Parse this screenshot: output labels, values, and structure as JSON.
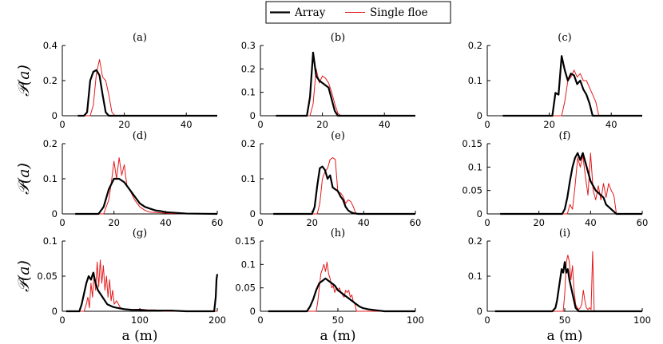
{
  "chart_data": {
    "type": "line",
    "legend": {
      "placement": "top-center",
      "entries": [
        {
          "name": "Array",
          "color": "#000000"
        },
        {
          "name": "Single floe",
          "color": "#e41a1c"
        }
      ]
    },
    "ylabel": "𝒫(a)",
    "xlabel": "a (m)",
    "panels": [
      {
        "title": "(a)",
        "xlim": [
          0,
          50
        ],
        "ylim": [
          0,
          0.4
        ],
        "xticks": [
          "0",
          "20",
          "40"
        ],
        "yticks": [
          "0",
          "0.2",
          "0.4"
        ],
        "series": [
          {
            "name": "Array",
            "x": [
              5,
              7,
              8,
              9,
              10,
              11,
              12,
              13,
              14,
              15,
              16,
              50
            ],
            "y": [
              0,
              0,
              0.02,
              0.2,
              0.25,
              0.26,
              0.23,
              0.12,
              0.02,
              0,
              0,
              0
            ]
          },
          {
            "name": "Single floe",
            "x": [
              5,
              9,
              10,
              11,
              12,
              13,
              14,
              15,
              16,
              17,
              50
            ],
            "y": [
              0,
              0,
              0.06,
              0.24,
              0.32,
              0.22,
              0.2,
              0.12,
              0.02,
              0,
              0
            ]
          }
        ]
      },
      {
        "title": "(b)",
        "xlim": [
          0,
          50
        ],
        "ylim": [
          0,
          0.3
        ],
        "xticks": [
          "0",
          "20",
          "40"
        ],
        "yticks": [
          "0",
          "0.1",
          "0.2",
          "0.3"
        ],
        "series": [
          {
            "name": "Array",
            "x": [
              5,
              15,
              16,
              17,
              18,
              19,
              20,
              21,
              22,
              23,
              24,
              25,
              50
            ],
            "y": [
              0,
              0,
              0.08,
              0.27,
              0.17,
              0.15,
              0.14,
              0.13,
              0.12,
              0.07,
              0.02,
              0,
              0
            ]
          },
          {
            "name": "Single floe",
            "x": [
              5,
              16,
              17,
              18,
              19,
              20,
              21,
              22,
              23,
              24,
              25,
              26,
              50
            ],
            "y": [
              0,
              0,
              0.05,
              0.2,
              0.14,
              0.17,
              0.16,
              0.14,
              0.1,
              0.05,
              0.01,
              0,
              0
            ]
          }
        ]
      },
      {
        "title": "(c)",
        "xlim": [
          0,
          50
        ],
        "ylim": [
          0,
          0.2
        ],
        "xticks": [
          "0",
          "20",
          "40"
        ],
        "yticks": [
          "0",
          "0.1",
          "0.2"
        ],
        "series": [
          {
            "name": "Array",
            "x": [
              5,
              21,
              22,
              23,
              24,
              25,
              26,
              27,
              28,
              29,
              30,
              31,
              32,
              33,
              34,
              50
            ],
            "y": [
              0,
              0,
              0.065,
              0.06,
              0.17,
              0.13,
              0.1,
              0.12,
              0.115,
              0.09,
              0.1,
              0.075,
              0.06,
              0.035,
              0,
              0
            ]
          },
          {
            "name": "Single floe",
            "x": [
              5,
              24,
              25,
              26,
              27,
              28,
              29,
              30,
              31,
              32,
              33,
              34,
              35,
              36,
              50
            ],
            "y": [
              0,
              0,
              0.04,
              0.1,
              0.11,
              0.13,
              0.11,
              0.12,
              0.1,
              0.1,
              0.08,
              0.06,
              0.04,
              0,
              0
            ]
          }
        ]
      },
      {
        "title": "(d)",
        "xlim": [
          0,
          60
        ],
        "ylim": [
          0,
          0.2
        ],
        "xticks": [
          "0",
          "20",
          "40",
          "60"
        ],
        "yticks": [
          "0",
          "0.1",
          "0.2"
        ],
        "series": [
          {
            "name": "Array",
            "x": [
              5,
              14,
              16,
              18,
              20,
              22,
              24,
              26,
              28,
              30,
              32,
              34,
              36,
              38,
              40,
              44,
              48,
              60
            ],
            "y": [
              0,
              0,
              0.02,
              0.07,
              0.1,
              0.1,
              0.09,
              0.07,
              0.05,
              0.03,
              0.02,
              0.015,
              0.01,
              0.008,
              0.005,
              0.003,
              0.001,
              0
            ]
          },
          {
            "name": "Single floe",
            "x": [
              5,
              16,
              18,
              19,
              20,
              21,
              22,
              23,
              24,
              25,
              26,
              28,
              30,
              32,
              34,
              38,
              42,
              60
            ],
            "y": [
              0,
              0,
              0.04,
              0.09,
              0.15,
              0.1,
              0.16,
              0.11,
              0.14,
              0.08,
              0.07,
              0.04,
              0.02,
              0.01,
              0.005,
              0.003,
              0.001,
              0
            ]
          }
        ]
      },
      {
        "title": "(e)",
        "xlim": [
          0,
          60
        ],
        "ylim": [
          0,
          0.2
        ],
        "xticks": [
          "0",
          "20",
          "40",
          "60"
        ],
        "yticks": [
          "0",
          "0.1",
          "0.2"
        ],
        "series": [
          {
            "name": "Array",
            "x": [
              5,
              20,
              21,
              22,
              23,
              24,
              25,
              26,
              27,
              28,
              29,
              30,
              31,
              32,
              33,
              34,
              35,
              36,
              38,
              40,
              60
            ],
            "y": [
              0,
              0,
              0.02,
              0.08,
              0.13,
              0.135,
              0.125,
              0.1,
              0.11,
              0.075,
              0.07,
              0.065,
              0.05,
              0.04,
              0.02,
              0.01,
              0.005,
              0.002,
              0,
              0,
              0
            ]
          },
          {
            "name": "Single floe",
            "x": [
              5,
              22,
              23,
              24,
              25,
              26,
              27,
              28,
              29,
              30,
              31,
              32,
              33,
              34,
              35,
              36,
              37,
              60
            ],
            "y": [
              0,
              0,
              0.03,
              0.1,
              0.12,
              0.13,
              0.155,
              0.16,
              0.155,
              0.06,
              0.06,
              0.05,
              0.03,
              0.04,
              0.035,
              0.02,
              0,
              0
            ]
          }
        ]
      },
      {
        "title": "(f)",
        "xlim": [
          0,
          60
        ],
        "ylim": [
          0,
          0.15
        ],
        "xticks": [
          "0",
          "20",
          "40",
          "60"
        ],
        "yticks": [
          "0",
          "0.05",
          "0.1",
          "0.15"
        ],
        "series": [
          {
            "name": "Array",
            "x": [
              5,
              29,
              30,
              31,
              32,
              33,
              34,
              35,
              36,
              37,
              38,
              39,
              40,
              41,
              42,
              43,
              44,
              45,
              46,
              47,
              48,
              49,
              50,
              60
            ],
            "y": [
              0,
              0,
              0.01,
              0.035,
              0.07,
              0.1,
              0.12,
              0.13,
              0.115,
              0.13,
              0.11,
              0.09,
              0.07,
              0.06,
              0.05,
              0.045,
              0.04,
              0.035,
              0.02,
              0.015,
              0.01,
              0.005,
              0,
              0
            ]
          },
          {
            "name": "Single floe",
            "x": [
              5,
              31,
              32,
              33,
              34,
              35,
              36,
              37,
              38,
              39,
              40,
              41,
              42,
              43,
              44,
              45,
              46,
              47,
              48,
              49,
              50,
              60
            ],
            "y": [
              0,
              0,
              0.02,
              0.01,
              0.06,
              0.12,
              0.1,
              0.125,
              0.08,
              0.04,
              0.13,
              0.05,
              0.03,
              0.06,
              0.03,
              0.065,
              0.035,
              0.065,
              0.05,
              0.04,
              0,
              0
            ]
          }
        ]
      },
      {
        "title": "(g)",
        "xlim": [
          0,
          200
        ],
        "ylim": [
          0,
          0.1
        ],
        "xticks": [
          "0",
          "100",
          "200"
        ],
        "yticks": [
          "0",
          "0.05",
          "0.1"
        ],
        "series": [
          {
            "name": "Array",
            "x": [
              5,
              22,
              25,
              28,
              31,
              34,
              37,
              40,
              43,
              46,
              49,
              52,
              55,
              58,
              62,
              66,
              70,
              80,
              90,
              100,
              110,
              120,
              140,
              160,
              180,
              196,
              198,
              199,
              200
            ],
            "y": [
              0,
              0,
              0.01,
              0.025,
              0.04,
              0.05,
              0.045,
              0.055,
              0.04,
              0.03,
              0.025,
              0.02,
              0.015,
              0.01,
              0.008,
              0.006,
              0.005,
              0.003,
              0.002,
              0.002,
              0.001,
              0.001,
              0.001,
              0,
              0,
              0,
              0.02,
              0.045,
              0.053
            ]
          },
          {
            "name": "Single floe",
            "x": [
              5,
              28,
              31,
              33,
              35,
              37,
              39,
              41,
              43,
              45,
              47,
              49,
              51,
              53,
              55,
              57,
              59,
              61,
              63,
              65,
              67,
              70,
              75,
              80,
              90,
              100,
              110,
              120,
              130,
              200
            ],
            "y": [
              0,
              0,
              0.01,
              0.02,
              0.005,
              0.04,
              0.02,
              0.055,
              0.03,
              0.07,
              0.035,
              0.073,
              0.04,
              0.065,
              0.03,
              0.05,
              0.02,
              0.045,
              0.015,
              0.03,
              0.01,
              0.015,
              0.005,
              0.003,
              0.002,
              0.003,
              0.002,
              0.002,
              0,
              0
            ]
          }
        ]
      },
      {
        "title": "(h)",
        "xlim": [
          0,
          100
        ],
        "ylim": [
          0,
          0.15
        ],
        "xticks": [
          "0",
          "50",
          "100"
        ],
        "yticks": [
          "0",
          "0.05",
          "0.1",
          "0.15"
        ],
        "series": [
          {
            "name": "Array",
            "x": [
              5,
              30,
              32,
              34,
              36,
              38,
              40,
              42,
              44,
              46,
              48,
              50,
              52,
              54,
              56,
              58,
              60,
              62,
              64,
              66,
              70,
              75,
              80,
              100
            ],
            "y": [
              0,
              0,
              0.01,
              0.025,
              0.045,
              0.06,
              0.065,
              0.07,
              0.065,
              0.06,
              0.055,
              0.045,
              0.04,
              0.035,
              0.03,
              0.025,
              0.02,
              0.015,
              0.01,
              0.007,
              0.004,
              0.002,
              0,
              0
            ]
          },
          {
            "name": "Single floe",
            "x": [
              5,
              36,
              37,
              38,
              39,
              40,
              41,
              42,
              43,
              44,
              45,
              46,
              47,
              48,
              49,
              50,
              51,
              52,
              53,
              54,
              55,
              56,
              57,
              58,
              59,
              60,
              61,
              62,
              100
            ],
            "y": [
              0,
              0,
              0.02,
              0.05,
              0.08,
              0.09,
              0.1,
              0.085,
              0.105,
              0.08,
              0.07,
              0.05,
              0.055,
              0.04,
              0.05,
              0.045,
              0.05,
              0.04,
              0.035,
              0.03,
              0.045,
              0.04,
              0.045,
              0.03,
              0.035,
              0.02,
              0.015,
              0,
              0
            ]
          }
        ]
      },
      {
        "title": "(i)",
        "xlim": [
          0,
          100
        ],
        "ylim": [
          0,
          0.2
        ],
        "xticks": [
          "0",
          "50",
          "100"
        ],
        "yticks": [
          "0",
          "0.1",
          "0.2"
        ],
        "series": [
          {
            "name": "Array",
            "x": [
              5,
              42,
              44,
              45,
              46,
              47,
              48,
              49,
              50,
              51,
              52,
              53,
              54,
              55,
              56,
              57,
              58,
              59,
              60,
              100
            ],
            "y": [
              0,
              0,
              0.01,
              0.03,
              0.06,
              0.09,
              0.12,
              0.11,
              0.14,
              0.11,
              0.12,
              0.09,
              0.07,
              0.05,
              0.03,
              0.01,
              0.005,
              0,
              0,
              0
            ]
          },
          {
            "name": "Single floe",
            "x": [
              5,
              49,
              50,
              51,
              52,
              53,
              54,
              55,
              56,
              57,
              58,
              59,
              60,
              61,
              62,
              63,
              64,
              65,
              66,
              67,
              68,
              69,
              70,
              100
            ],
            "y": [
              0,
              0,
              0.05,
              0.14,
              0.16,
              0.14,
              0.09,
              0.13,
              0.06,
              0.02,
              0.01,
              0.005,
              0.01,
              0.02,
              0.06,
              0.03,
              0.01,
              0.005,
              0.01,
              0.005,
              0.17,
              0,
              0,
              0
            ]
          }
        ]
      }
    ]
  }
}
